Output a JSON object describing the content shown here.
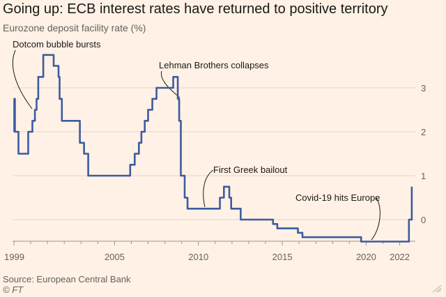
{
  "header": {
    "title": "Going up: ECB interest rates have returned to positive territory",
    "subtitle": "Eurozone deposit facility rate (%)"
  },
  "footer": {
    "source": "Source: European Central Bank",
    "credit": "© FT"
  },
  "colors": {
    "background": "#fff1e5",
    "line": "#3c5b9f",
    "grid": "#e3d5c7",
    "text": "#66605c"
  },
  "chart_data": {
    "type": "line",
    "title": "Going up: ECB interest rates have returned to positive territory",
    "ylabel": "Eurozone deposit facility rate (%)",
    "xlabel": "",
    "xlim": [
      1999,
      2022.6
    ],
    "ylim": [
      -0.5,
      3.75
    ],
    "y_ticks": [
      0,
      1,
      2,
      3
    ],
    "x_ticks": [
      1999,
      2005,
      2010,
      2015,
      2020,
      2022
    ],
    "grid": true,
    "series": [
      {
        "name": "Eurozone deposit facility rate",
        "step": true,
        "points": [
          [
            1999.0,
            2.0
          ],
          [
            1999.02,
            2.75
          ],
          [
            1999.06,
            2.0
          ],
          [
            1999.27,
            1.5
          ],
          [
            1999.85,
            2.0
          ],
          [
            2000.1,
            2.25
          ],
          [
            2000.25,
            2.5
          ],
          [
            2000.35,
            2.75
          ],
          [
            2000.45,
            3.25
          ],
          [
            2000.75,
            3.75
          ],
          [
            2001.37,
            3.5
          ],
          [
            2001.66,
            3.25
          ],
          [
            2001.72,
            2.75
          ],
          [
            2001.86,
            2.25
          ],
          [
            2002.93,
            1.75
          ],
          [
            2003.18,
            1.5
          ],
          [
            2003.43,
            1.0
          ],
          [
            2005.93,
            1.25
          ],
          [
            2006.2,
            1.5
          ],
          [
            2006.45,
            1.75
          ],
          [
            2006.6,
            2.0
          ],
          [
            2006.8,
            2.25
          ],
          [
            2007.0,
            2.5
          ],
          [
            2007.25,
            2.75
          ],
          [
            2007.5,
            3.0
          ],
          [
            2008.5,
            3.25
          ],
          [
            2008.77,
            2.75
          ],
          [
            2008.85,
            2.25
          ],
          [
            2008.95,
            1.0
          ],
          [
            2009.18,
            0.5
          ],
          [
            2009.35,
            0.25
          ],
          [
            2011.28,
            0.5
          ],
          [
            2011.52,
            0.75
          ],
          [
            2011.84,
            0.5
          ],
          [
            2011.95,
            0.25
          ],
          [
            2012.52,
            0.0
          ],
          [
            2014.45,
            -0.1
          ],
          [
            2014.7,
            -0.2
          ],
          [
            2015.93,
            -0.3
          ],
          [
            2016.2,
            -0.4
          ],
          [
            2019.7,
            -0.5
          ],
          [
            2022.55,
            0.0
          ],
          [
            2022.72,
            0.75
          ]
        ]
      }
    ],
    "annotations": [
      {
        "text": "Dotcom bubble bursts",
        "x": 2000.2,
        "y": 2.55,
        "position": "top-left"
      },
      {
        "text": "Lehman Brothers collapses",
        "x": 2008.75,
        "y": 2.75,
        "position": "top-center"
      },
      {
        "text": "First Greek bailout",
        "x": 2010.2,
        "y": 0.3,
        "position": "center"
      },
      {
        "text": "Covid-19 hits Europe",
        "x": 2020.2,
        "y": -0.5,
        "position": "bottom-right"
      }
    ]
  }
}
